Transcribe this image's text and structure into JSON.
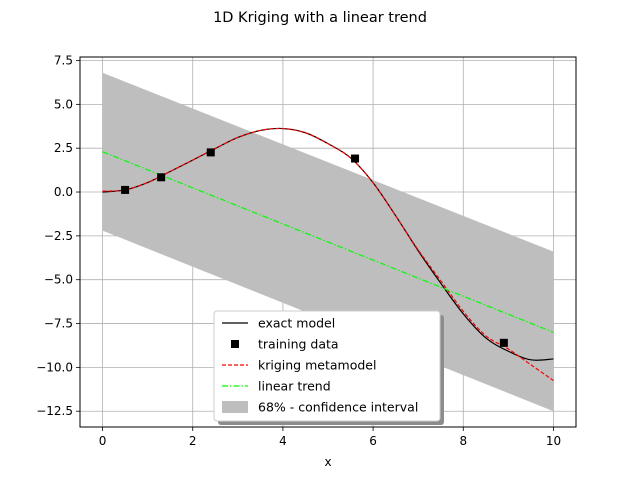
{
  "chart_data": {
    "type": "line",
    "title": "1D Kriging with a linear trend",
    "xlabel": "x",
    "ylabel": "",
    "xlim": [
      -0.5,
      10.5
    ],
    "ylim": [
      -13.4,
      7.7
    ],
    "xticks": [
      0,
      2,
      4,
      6,
      8,
      10
    ],
    "yticks": [
      -12.5,
      -10.0,
      -7.5,
      -5.0,
      -2.5,
      0.0,
      2.5,
      5.0,
      7.5
    ],
    "xtick_labels": [
      "0",
      "2",
      "4",
      "6",
      "8",
      "10"
    ],
    "ytick_labels": [
      "−12.5",
      "−10.0",
      "−7.5",
      "−5.0",
      "−2.5",
      "0.0",
      "2.5",
      "5.0",
      "7.5"
    ],
    "grid": true,
    "legend_position": "lower-center",
    "series": [
      {
        "name": "exact model",
        "kind": "line",
        "color": "#000000",
        "x": [
          0,
          0.5,
          1,
          1.5,
          2,
          2.5,
          3,
          3.5,
          4,
          4.5,
          5,
          5.5,
          6,
          6.5,
          7,
          7.5,
          8,
          8.5,
          9,
          9.5,
          10
        ],
        "y": [
          0.0,
          0.12,
          0.54,
          1.17,
          1.82,
          2.48,
          3.11,
          3.51,
          3.62,
          3.38,
          2.76,
          1.95,
          0.53,
          -1.35,
          -3.35,
          -5.2,
          -6.95,
          -8.32,
          -9.08,
          -9.57,
          -9.52
        ]
      },
      {
        "name": "training data",
        "kind": "scatter",
        "color": "#000000",
        "x": [
          0.5,
          1.3,
          2.4,
          5.6,
          8.9
        ],
        "y": [
          0.12,
          0.84,
          2.26,
          1.91,
          -8.6
        ]
      },
      {
        "name": "kriging metamodel",
        "kind": "dashed",
        "color": "#ff0000",
        "x": [
          0,
          0.5,
          1,
          1.5,
          2,
          2.5,
          3,
          3.5,
          4,
          4.5,
          5,
          5.5,
          6,
          6.5,
          7,
          7.5,
          8,
          8.5,
          9,
          9.5,
          10
        ],
        "y": [
          0.05,
          0.12,
          0.54,
          1.17,
          1.82,
          2.48,
          3.11,
          3.51,
          3.62,
          3.38,
          2.76,
          1.95,
          0.53,
          -1.35,
          -3.3,
          -5.05,
          -6.8,
          -8.2,
          -8.95,
          -9.85,
          -10.75
        ]
      },
      {
        "name": "linear trend",
        "kind": "dashdot",
        "color": "#00ff00",
        "x": [
          0,
          10
        ],
        "y": [
          2.3,
          -8.0
        ]
      },
      {
        "name": "68% - confidence interval",
        "kind": "band",
        "color": "#bebebe",
        "x": [
          0,
          10
        ],
        "upper": [
          6.8,
          -3.4
        ],
        "lower": [
          -2.2,
          -12.5
        ]
      }
    ]
  }
}
